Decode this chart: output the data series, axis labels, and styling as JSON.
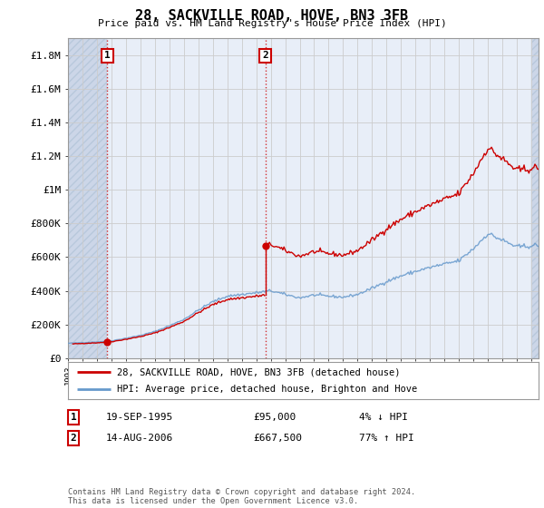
{
  "title": "28, SACKVILLE ROAD, HOVE, BN3 3FB",
  "subtitle": "Price paid vs. HM Land Registry's House Price Index (HPI)",
  "ylabel_ticks": [
    "£0",
    "£200K",
    "£400K",
    "£600K",
    "£800K",
    "£1M",
    "£1.2M",
    "£1.4M",
    "£1.6M",
    "£1.8M"
  ],
  "ytick_values": [
    0,
    200000,
    400000,
    600000,
    800000,
    1000000,
    1200000,
    1400000,
    1600000,
    1800000
  ],
  "ylim": [
    0,
    1900000
  ],
  "xlim_start": 1993.0,
  "xlim_end": 2025.5,
  "sale1_date": 1995.72,
  "sale1_price": 95000,
  "sale2_date": 2006.62,
  "sale2_price": 667500,
  "legend_line1": "28, SACKVILLE ROAD, HOVE, BN3 3FB (detached house)",
  "legend_line2": "HPI: Average price, detached house, Brighton and Hove",
  "table_row1_num": "1",
  "table_row1_date": "19-SEP-1995",
  "table_row1_price": "£95,000",
  "table_row1_hpi": "4% ↓ HPI",
  "table_row2_num": "2",
  "table_row2_date": "14-AUG-2006",
  "table_row2_price": "£667,500",
  "table_row2_hpi": "77% ↑ HPI",
  "footnote": "Contains HM Land Registry data © Crown copyright and database right 2024.\nThis data is licensed under the Open Government Licence v3.0.",
  "line_color_sold": "#cc0000",
  "line_color_hpi": "#6699cc",
  "bg_hatch": "#ccd6e8",
  "plot_bg": "#ffffff",
  "grid_color": "#cccccc",
  "main_area_bg": "#e8eef8"
}
